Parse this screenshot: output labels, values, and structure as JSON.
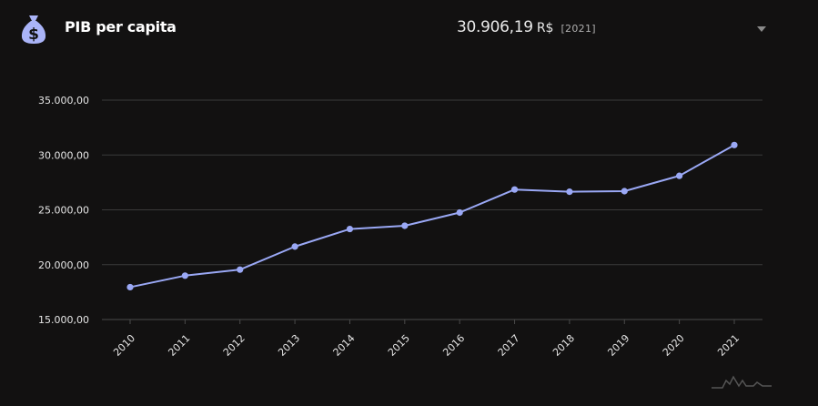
{
  "header": {
    "icon": "money-bag-icon",
    "title": "PIB per capita",
    "value": "30.906,19",
    "unit": "R$",
    "year": "[2021]",
    "dropdown_icon": "caret-down-icon"
  },
  "colors": {
    "background": "#121111",
    "line": "#9aa8f5",
    "icon": "#aab4f8",
    "grid": "#3a3a3a"
  },
  "chart_data": {
    "type": "line",
    "title": "",
    "xlabel": "",
    "ylabel": "",
    "categories": [
      "2010",
      "2011",
      "2012",
      "2013",
      "2014",
      "2015",
      "2016",
      "2017",
      "2018",
      "2019",
      "2020",
      "2021"
    ],
    "values": [
      17950,
      19000,
      19550,
      21650,
      23250,
      23550,
      24750,
      26850,
      26650,
      26700,
      28100,
      30906.19
    ],
    "ylim": [
      15000,
      35000
    ],
    "yticks": [
      "15.000,00",
      "20.000,00",
      "25.000,00",
      "30.000,00",
      "35.000,00"
    ],
    "grid": true,
    "legend": "none"
  },
  "footer": {
    "logo": "chart-logo-icon"
  }
}
